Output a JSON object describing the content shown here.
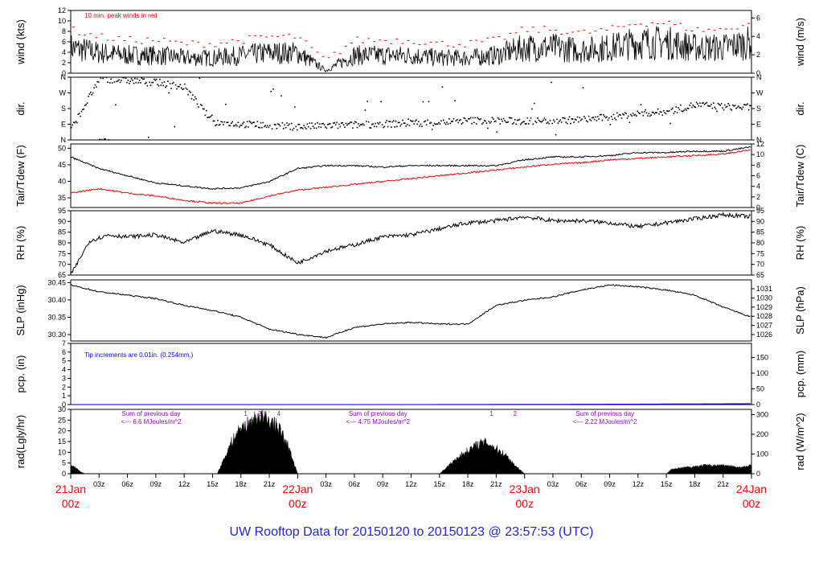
{
  "title": "UW Rooftop Data for 20150120  to  20150123 @ 23:57:53  (UTC)",
  "colors": {
    "black": "#000000",
    "red": "#ff0000",
    "blue": "#0000ff",
    "title": "#2222dd",
    "purple": "#9900cc",
    "frame": "#000000"
  },
  "time_axis": {
    "hour_labels": [
      "03z",
      "06z",
      "09z",
      "12z",
      "15z",
      "18z",
      "21z",
      "03z",
      "06z",
      "09z",
      "12z",
      "15z",
      "18z",
      "21z",
      "03z",
      "06z",
      "09z",
      "12z",
      "15z",
      "18z",
      "21z"
    ],
    "day_labels": [
      {
        "day": "21Jan",
        "hour": "00z"
      },
      {
        "day": "22Jan",
        "hour": "00z"
      },
      {
        "day": "23Jan",
        "hour": "00z"
      },
      {
        "day": "24Jan",
        "hour": "00z"
      }
    ],
    "range_hours": [
      0,
      72
    ]
  },
  "chart_data": [
    {
      "type": "line",
      "id": "wind",
      "left_label": "wind (kts)",
      "right_label": "wind (m/s)",
      "left_ticks": [
        "0",
        "2",
        "4",
        "6",
        "8",
        "10",
        "12"
      ],
      "right_ticks": [
        "0",
        "2",
        "4",
        "6"
      ],
      "ylim": [
        0,
        13
      ],
      "annotation": "10 min. peak winds in red",
      "series": [
        {
          "color": "#000000",
          "x_hours": [
            0,
            3,
            6,
            9,
            12,
            15,
            18,
            21,
            24,
            27,
            30,
            33,
            36,
            39,
            42,
            45,
            48,
            51,
            54,
            57,
            60,
            63,
            66,
            69,
            72
          ],
          "values": [
            5,
            4,
            3.5,
            3.5,
            3,
            3,
            3.5,
            4,
            4,
            0.5,
            3.5,
            3.5,
            3.5,
            3,
            3,
            3.5,
            5,
            5,
            4.5,
            5,
            6,
            6,
            5,
            5,
            6
          ]
        }
      ]
    },
    {
      "type": "scatter",
      "id": "dir",
      "left_label": "dir.",
      "right_label": "dir.",
      "left_ticks": [
        "N",
        "E",
        "S",
        "W",
        "N"
      ],
      "right_ticks": [
        "N",
        "E",
        "S",
        "W",
        "N"
      ],
      "ylim": [
        0,
        360
      ],
      "series": [
        {
          "color": "#000000",
          "x_hours": [
            0,
            3,
            6,
            9,
            12,
            15,
            18,
            21,
            24,
            27,
            30,
            33,
            36,
            39,
            42,
            45,
            48,
            51,
            54,
            57,
            60,
            63,
            66,
            69,
            72
          ],
          "values": [
            60,
            350,
            340,
            330,
            300,
            100,
            90,
            80,
            75,
            80,
            85,
            90,
            95,
            100,
            110,
            110,
            105,
            110,
            115,
            130,
            150,
            160,
            200,
            190,
            185
          ]
        }
      ]
    },
    {
      "type": "line",
      "id": "temp",
      "left_label": "Tair/Tdew (F)",
      "right_label": "Tair/Tdew (C)",
      "left_ticks": [
        "35",
        "40",
        "45",
        "50"
      ],
      "right_ticks": [
        "0",
        "2",
        "4",
        "6",
        "8",
        "10",
        "12"
      ],
      "ylim": [
        32,
        54
      ],
      "series": [
        {
          "name": "Tair",
          "color": "#000000",
          "x_hours": [
            0,
            3,
            6,
            9,
            12,
            15,
            18,
            21,
            24,
            27,
            30,
            33,
            36,
            39,
            42,
            45,
            48,
            51,
            54,
            57,
            60,
            63,
            66,
            69,
            72
          ],
          "values": [
            49.5,
            45.5,
            43,
            40.5,
            39.5,
            38.5,
            38.8,
            41,
            45.5,
            46.5,
            46.5,
            46,
            46.5,
            46.5,
            46.5,
            46.5,
            48.5,
            49.5,
            49.5,
            50,
            51,
            51,
            51.5,
            51.5,
            53
          ]
        },
        {
          "name": "Tdew",
          "color": "#ff0000",
          "x_hours": [
            0,
            3,
            6,
            9,
            12,
            15,
            18,
            21,
            24,
            27,
            30,
            33,
            36,
            39,
            42,
            45,
            48,
            51,
            54,
            57,
            60,
            63,
            66,
            69,
            72
          ],
          "values": [
            37,
            38.5,
            37,
            36,
            34.5,
            33.5,
            33.5,
            36,
            38,
            39,
            40,
            41,
            42,
            43,
            44,
            45,
            46,
            47,
            47.5,
            48.5,
            49,
            49.5,
            50,
            50.5,
            52
          ]
        }
      ]
    },
    {
      "type": "line",
      "id": "rh",
      "left_label": "RH (%)",
      "right_label": "RH (%)",
      "left_ticks": [
        "65",
        "70",
        "75",
        "80",
        "85",
        "90",
        "95"
      ],
      "right_ticks": [
        "65",
        "70",
        "75",
        "80",
        "85",
        "90",
        "95"
      ],
      "ylim": [
        65,
        97
      ],
      "series": [
        {
          "color": "#000000",
          "x_hours": [
            0,
            2,
            4,
            6,
            9,
            12,
            15,
            18,
            21,
            24,
            27,
            30,
            33,
            36,
            39,
            42,
            45,
            48,
            51,
            54,
            57,
            60,
            63,
            66,
            69,
            72
          ],
          "values": [
            65,
            82,
            85,
            84,
            85,
            81,
            87,
            85,
            80,
            71,
            77,
            80,
            84,
            85,
            88,
            91,
            92,
            94,
            92,
            92,
            91,
            89,
            91,
            93,
            95,
            94
          ]
        }
      ]
    },
    {
      "type": "line",
      "id": "slp",
      "left_label": "SLP (inHg)",
      "right_label": "SLP (hPa)",
      "left_ticks": [
        "30.30",
        "30.35",
        "30.40",
        "30.45"
      ],
      "right_ticks": [
        "1026",
        "1027",
        "1028",
        "1029",
        "1030",
        "1031"
      ],
      "ylim": [
        30.28,
        30.46
      ],
      "series": [
        {
          "color": "#000000",
          "x_hours": [
            0,
            3,
            6,
            9,
            12,
            15,
            18,
            21,
            24,
            27,
            30,
            33,
            36,
            39,
            42,
            45,
            48,
            51,
            54,
            57,
            60,
            63,
            66,
            69,
            72
          ],
          "values": [
            30.445,
            30.425,
            30.415,
            30.405,
            30.385,
            30.37,
            30.35,
            30.315,
            30.3,
            30.29,
            30.32,
            30.33,
            30.335,
            30.33,
            30.33,
            30.385,
            30.4,
            30.41,
            30.43,
            30.445,
            30.44,
            30.43,
            30.415,
            30.38,
            30.35
          ]
        }
      ]
    },
    {
      "type": "line",
      "id": "pcp",
      "left_label": "pcp. (in)",
      "right_label": "pcp. (mm)",
      "left_ticks": [
        "0",
        "1",
        "2",
        "3",
        "4",
        "5",
        "6",
        "7"
      ],
      "right_ticks": [
        "0",
        "50",
        "100",
        "150"
      ],
      "ylim": [
        0,
        7
      ],
      "annotation": "Tip increments are 0.01in. (0.254mm.)",
      "series": [
        {
          "color": "#0000ff",
          "x_hours": [
            0,
            36,
            48,
            60,
            72
          ],
          "values": [
            0,
            0,
            0.02,
            0.05,
            0.1
          ]
        }
      ]
    },
    {
      "type": "area",
      "id": "rad",
      "left_label": "rad(Lgly/hr)",
      "right_label": "rad (W/m^2)",
      "left_ticks": [
        "0",
        "5",
        "10",
        "15",
        "20",
        "25",
        "30"
      ],
      "right_ticks": [
        "0",
        "100",
        "200",
        "300"
      ],
      "ylim": [
        0,
        31
      ],
      "series": [
        {
          "color": "#000000",
          "x_hours": [
            0,
            0.5,
            1,
            1.5,
            15.5,
            16,
            17,
            18,
            19,
            20,
            21,
            22,
            23,
            24,
            39,
            40,
            41,
            42,
            43,
            44,
            45,
            46,
            47,
            48,
            63,
            63.5,
            65,
            67,
            69,
            71,
            72
          ],
          "values": [
            4,
            3,
            1,
            0,
            0,
            5,
            15,
            22,
            24,
            28,
            25,
            22,
            13,
            0,
            0,
            4,
            8,
            11,
            14,
            15,
            12,
            9,
            4,
            0,
            0,
            2,
            3,
            4,
            4,
            3,
            4
          ]
        }
      ],
      "day_notes": [
        {
          "text": "Sum of previous day",
          "sub": "<--- 6.6 MJoules/m^2",
          "center_hour": 8.5
        },
        {
          "text": "Sum of previous day",
          "sub": "<--- 4.75 MJoules/m^2",
          "center_hour": 32.5
        },
        {
          "text": "Sum of previous day",
          "sub": "<--- 2.22 MJoules/m^2",
          "center_hour": 56.5
        }
      ],
      "peak_marks": [
        {
          "text": "1",
          "hour": 18.5
        },
        {
          "text": "3",
          "hour": 20
        },
        {
          "text": "'",
          "hour": 21
        },
        {
          "text": "4",
          "hour": 22
        },
        {
          "text": "1",
          "hour": 44.5
        },
        {
          "text": "2",
          "hour": 47
        }
      ]
    }
  ]
}
